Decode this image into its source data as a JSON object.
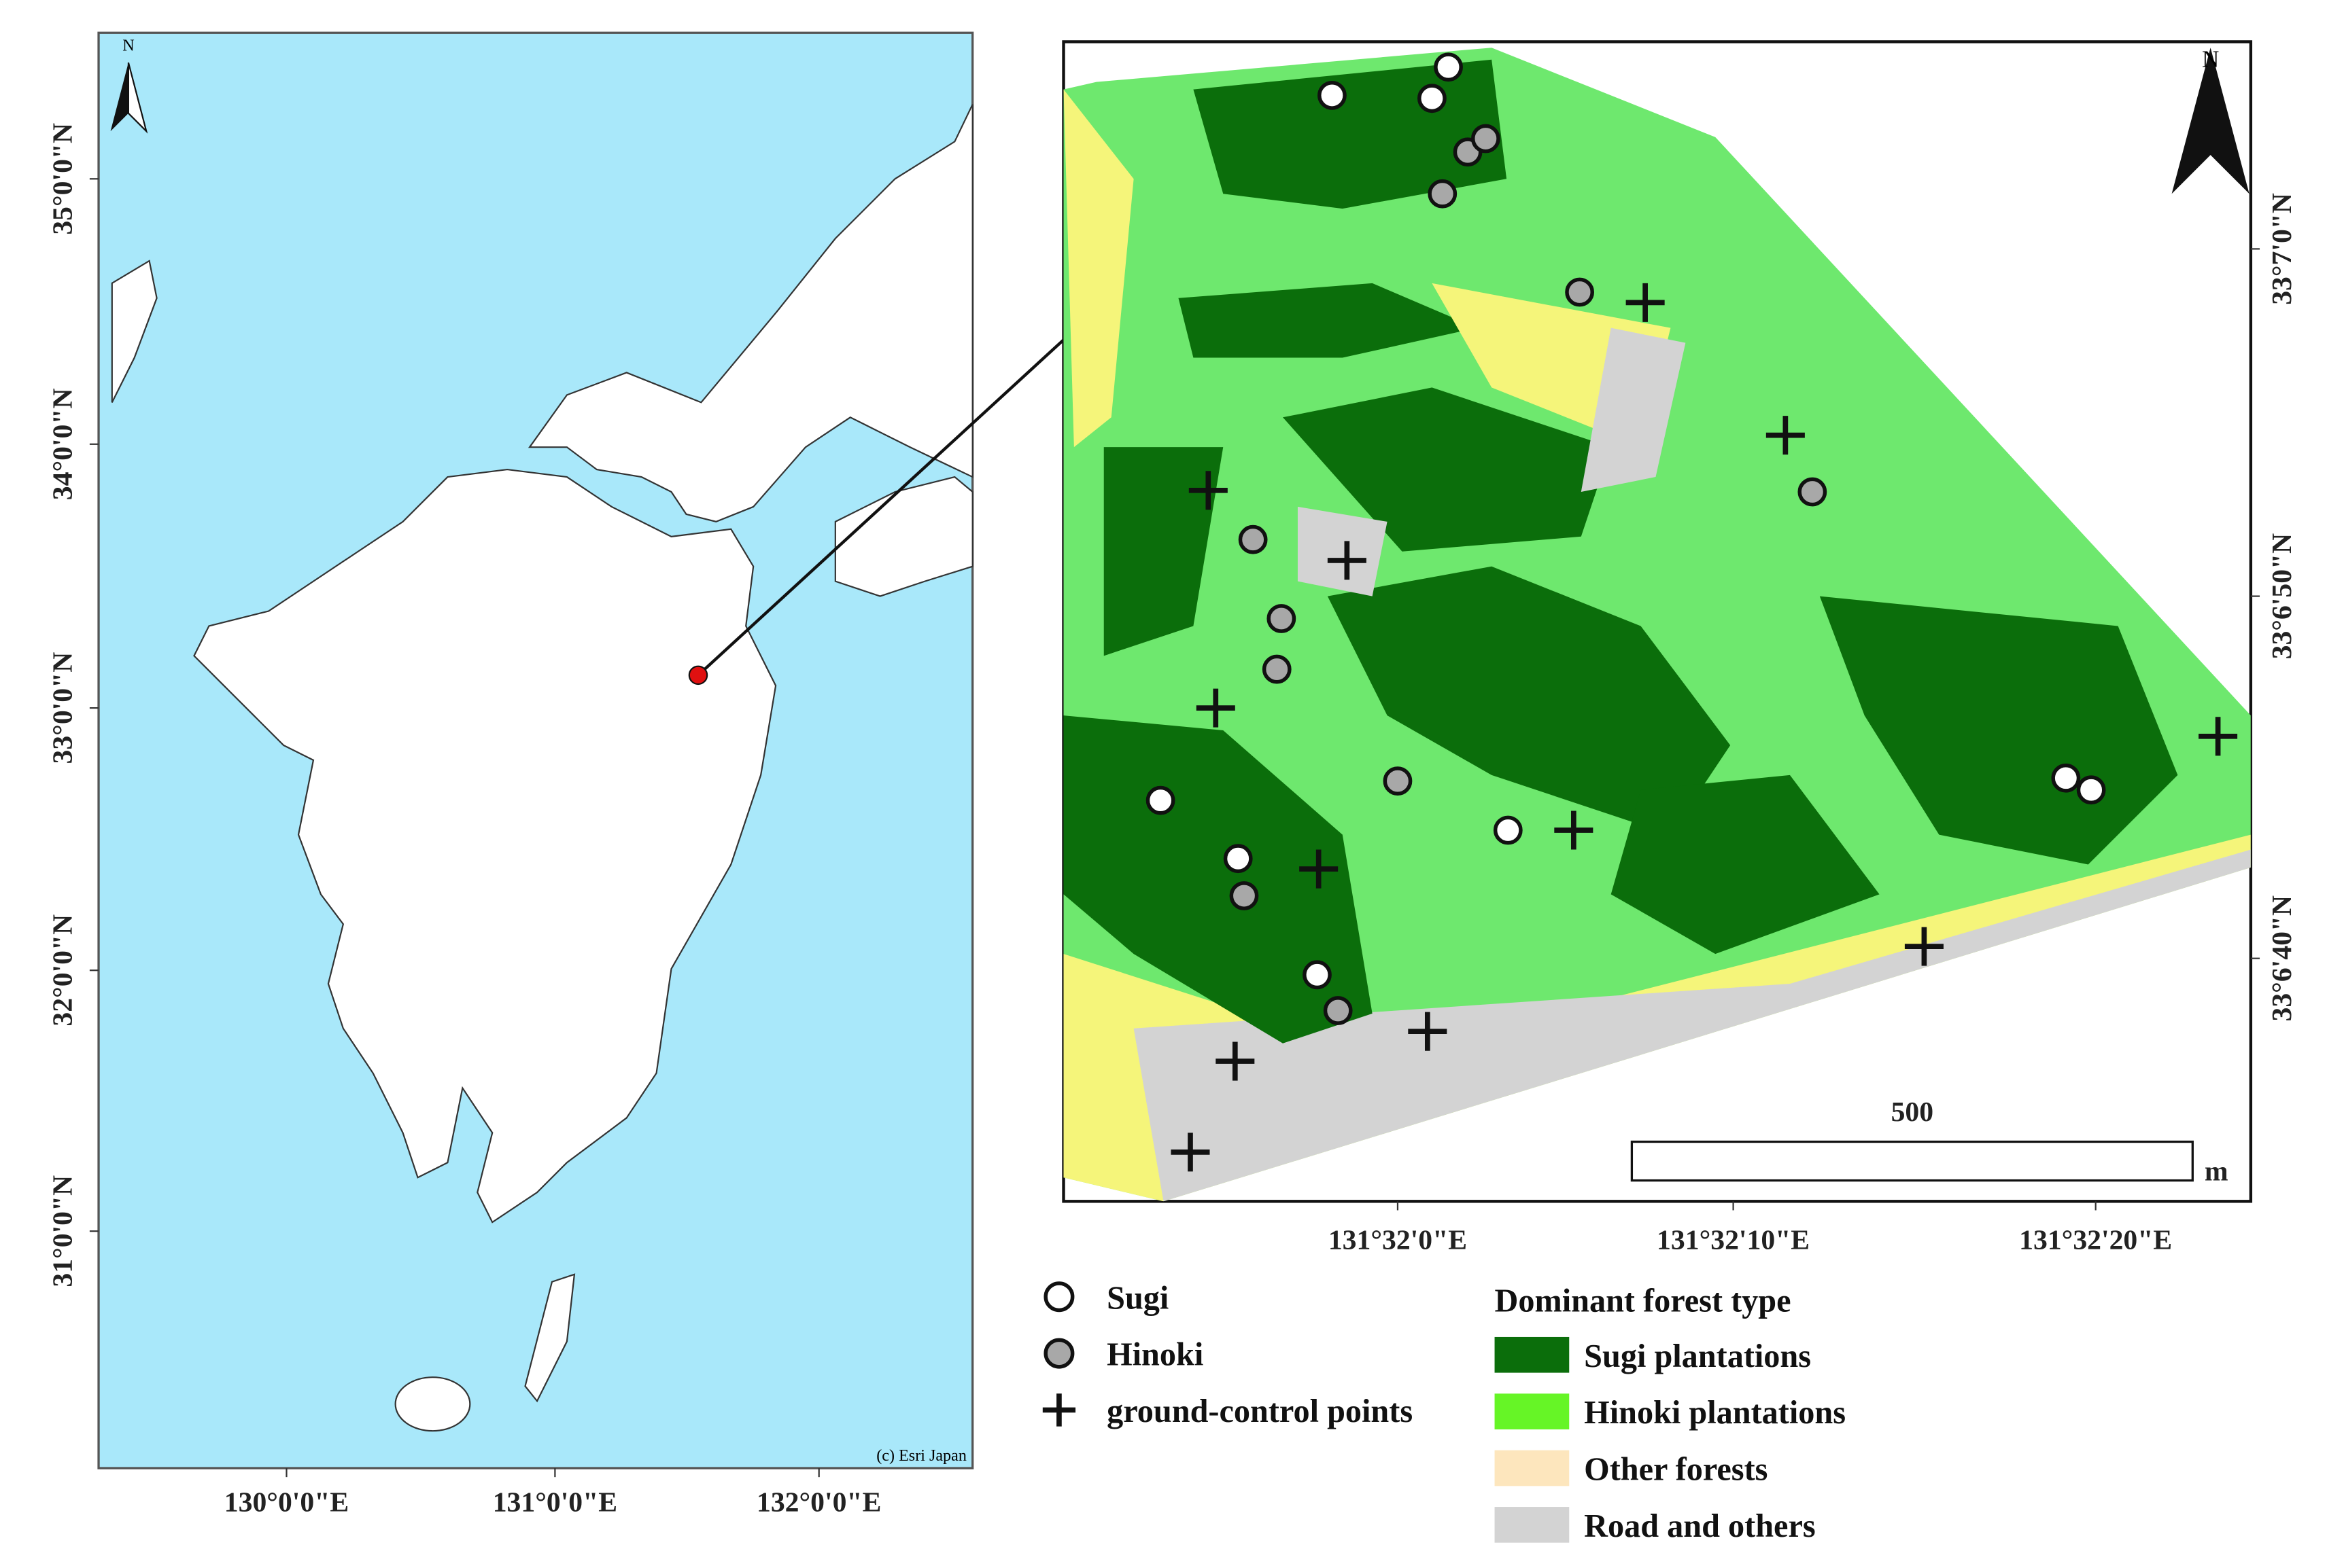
{
  "left_map": {
    "north": "N",
    "lat_labels": [
      "35°0'0\"N",
      "34°0'0\"N",
      "33°0'0\"N",
      "32°0'0\"N",
      "31°0'0\"N"
    ],
    "lon_labels": [
      "130°0'0\"E",
      "131°0'0\"E",
      "132°0'0\"E"
    ],
    "credit": "(c) Esri Japan"
  },
  "right_map": {
    "north": "N",
    "lat_labels": [
      "33°7'0\"N",
      "33°6'50\"N",
      "33°6'40\"N"
    ],
    "lon_labels": [
      "131°32'0\"E",
      "131°32'10\"E",
      "131°32'20\"E"
    ],
    "scale_label": "500",
    "scale_unit": "m"
  },
  "legend": {
    "points": [
      "Sugi",
      "Hinoki",
      "ground-control points"
    ],
    "forest_title": "Dominant forest type",
    "forest_types": [
      {
        "label": "Sugi plantations",
        "color": "#0b6e0b"
      },
      {
        "label": "Hinoki plantations",
        "color": "#66f526"
      },
      {
        "label": "Other forests",
        "color": "#fde6bd"
      },
      {
        "label": "Road and others",
        "color": "#d3d3d3"
      }
    ]
  }
}
